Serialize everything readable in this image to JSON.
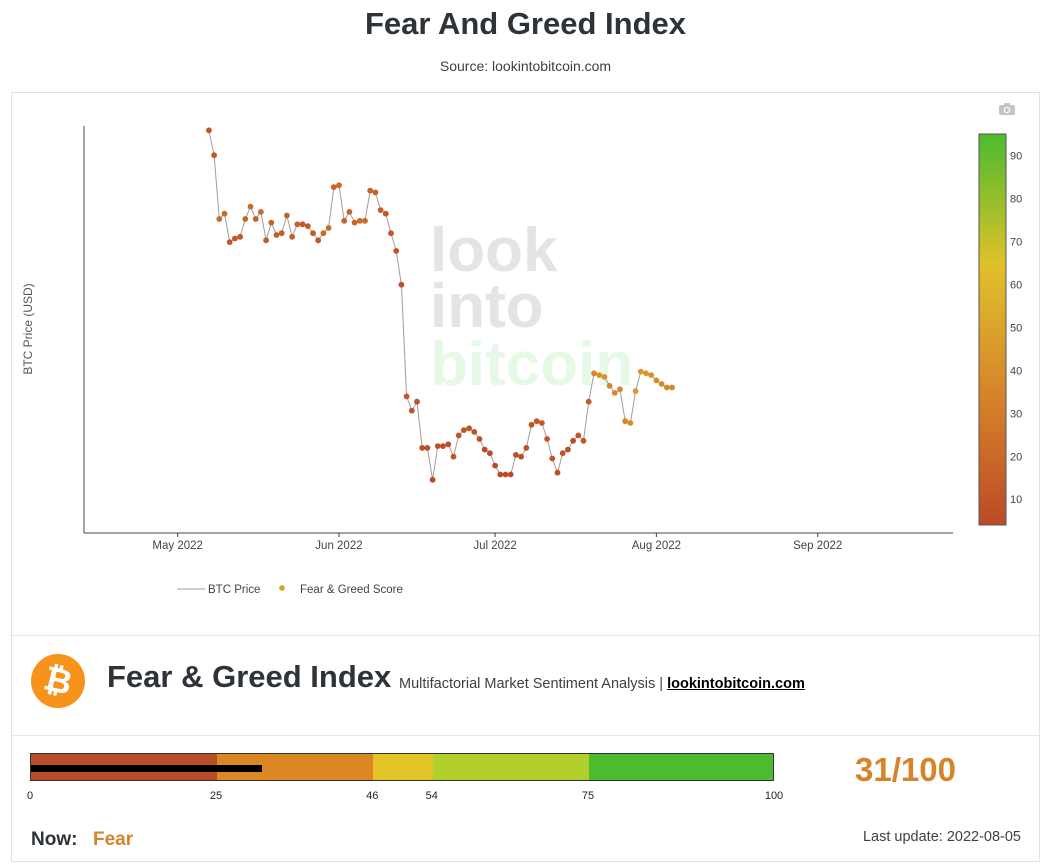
{
  "header": {
    "title": "Fear And Greed Index",
    "source": "Source: lookintobitcoin.com"
  },
  "icons": {
    "camera": "camera-icon",
    "logo": "bitcoin-logo-icon"
  },
  "chart_data": {
    "type": "line",
    "title": "",
    "xlabel": "",
    "ylabel": "BTC Price (USD)",
    "y_ticks_shown": false,
    "x_ticks": [
      "May 2022",
      "Jun 2022",
      "Jul 2022",
      "Aug 2022",
      "Sep 2022"
    ],
    "x_tick_dates": [
      "2022-05-01",
      "2022-06-01",
      "2022-07-01",
      "2022-08-01",
      "2022-09-01"
    ],
    "xlim": [
      "2022-04-13",
      "2022-09-27"
    ],
    "ylim": [
      17000,
      40000
    ],
    "start_date": "2022-05-07",
    "series": [
      {
        "name": "BTC Price",
        "color": "#9e9e9e",
        "style": "line"
      },
      {
        "name": "Fear & Greed Score",
        "color": "#d6a32a",
        "style": "markers"
      }
    ],
    "price": [
      39700,
      38300,
      34700,
      35000,
      33400,
      33600,
      33700,
      34700,
      35400,
      34700,
      35100,
      33500,
      34500,
      33800,
      33900,
      34900,
      33700,
      34400,
      34400,
      34300,
      33900,
      33500,
      33900,
      34200,
      36500,
      36600,
      34600,
      35100,
      34500,
      34600,
      34600,
      36300,
      36200,
      35200,
      35000,
      33900,
      32900,
      31000,
      24700,
      23900,
      24400,
      21800,
      21800,
      20000,
      21900,
      21900,
      22000,
      21300,
      22500,
      22800,
      22900,
      22700,
      22300,
      21700,
      21500,
      20800,
      20300,
      20300,
      20300,
      21400,
      21300,
      21800,
      23100,
      23300,
      23200,
      22300,
      21200,
      20400,
      21500,
      21700,
      22200,
      22500,
      22200,
      24400,
      26000,
      25900,
      25800,
      25300,
      24900,
      25100,
      23300,
      23200,
      25000,
      26100,
      26000,
      25900,
      25600,
      25400,
      25200,
      25200
    ],
    "score": [
      10,
      12,
      20,
      20,
      10,
      11,
      11,
      18,
      21,
      15,
      20,
      13,
      17,
      16,
      14,
      16,
      16,
      17,
      11,
      12,
      13,
      10,
      22,
      22,
      18,
      20,
      17,
      17,
      17,
      21,
      21,
      17,
      16,
      15,
      11,
      10,
      9,
      7,
      11,
      9,
      8,
      6,
      6,
      4,
      8,
      6,
      7,
      11,
      9,
      9,
      9,
      8,
      6,
      4,
      3,
      3,
      3,
      3,
      3,
      6,
      7,
      8,
      10,
      11,
      12,
      10,
      9,
      6,
      9,
      6,
      7,
      8,
      11,
      13,
      36,
      41,
      41,
      36,
      38,
      37,
      35,
      38,
      45,
      45,
      46,
      39,
      39,
      37,
      36,
      35
    ],
    "colorbar": {
      "range": [
        4,
        95
      ],
      "ticks": [
        10,
        20,
        30,
        40,
        50,
        60,
        70,
        80,
        90
      ],
      "colors": [
        "#bc4a26",
        "#d6842a",
        "#e0c12a",
        "#4cbb2f"
      ]
    },
    "legend_position": "bottom-left",
    "watermark": [
      "look",
      "into",
      "bitcoin"
    ]
  },
  "panel": {
    "title": "Fear & Greed Index",
    "subtitle": "Multifactorial Market Sentiment Analysis |",
    "link": "lookintobitcoin.com"
  },
  "gauge": {
    "value": 31,
    "max": 100,
    "score_text": "31/100",
    "ticks": [
      "0",
      "25",
      "46",
      "54",
      "75",
      "100"
    ],
    "segments": [
      {
        "from": 0,
        "to": 25,
        "color": "#b84d27"
      },
      {
        "from": 25,
        "to": 46,
        "color": "#db8824"
      },
      {
        "from": 46,
        "to": 54,
        "color": "#e2c427"
      },
      {
        "from": 54,
        "to": 75,
        "color": "#b2cf2c"
      },
      {
        "from": 75,
        "to": 100,
        "color": "#4cbb2f"
      }
    ]
  },
  "status": {
    "now_label": "Now:",
    "now_value": "Fear",
    "last_update": "Last update: 2022-08-05"
  }
}
